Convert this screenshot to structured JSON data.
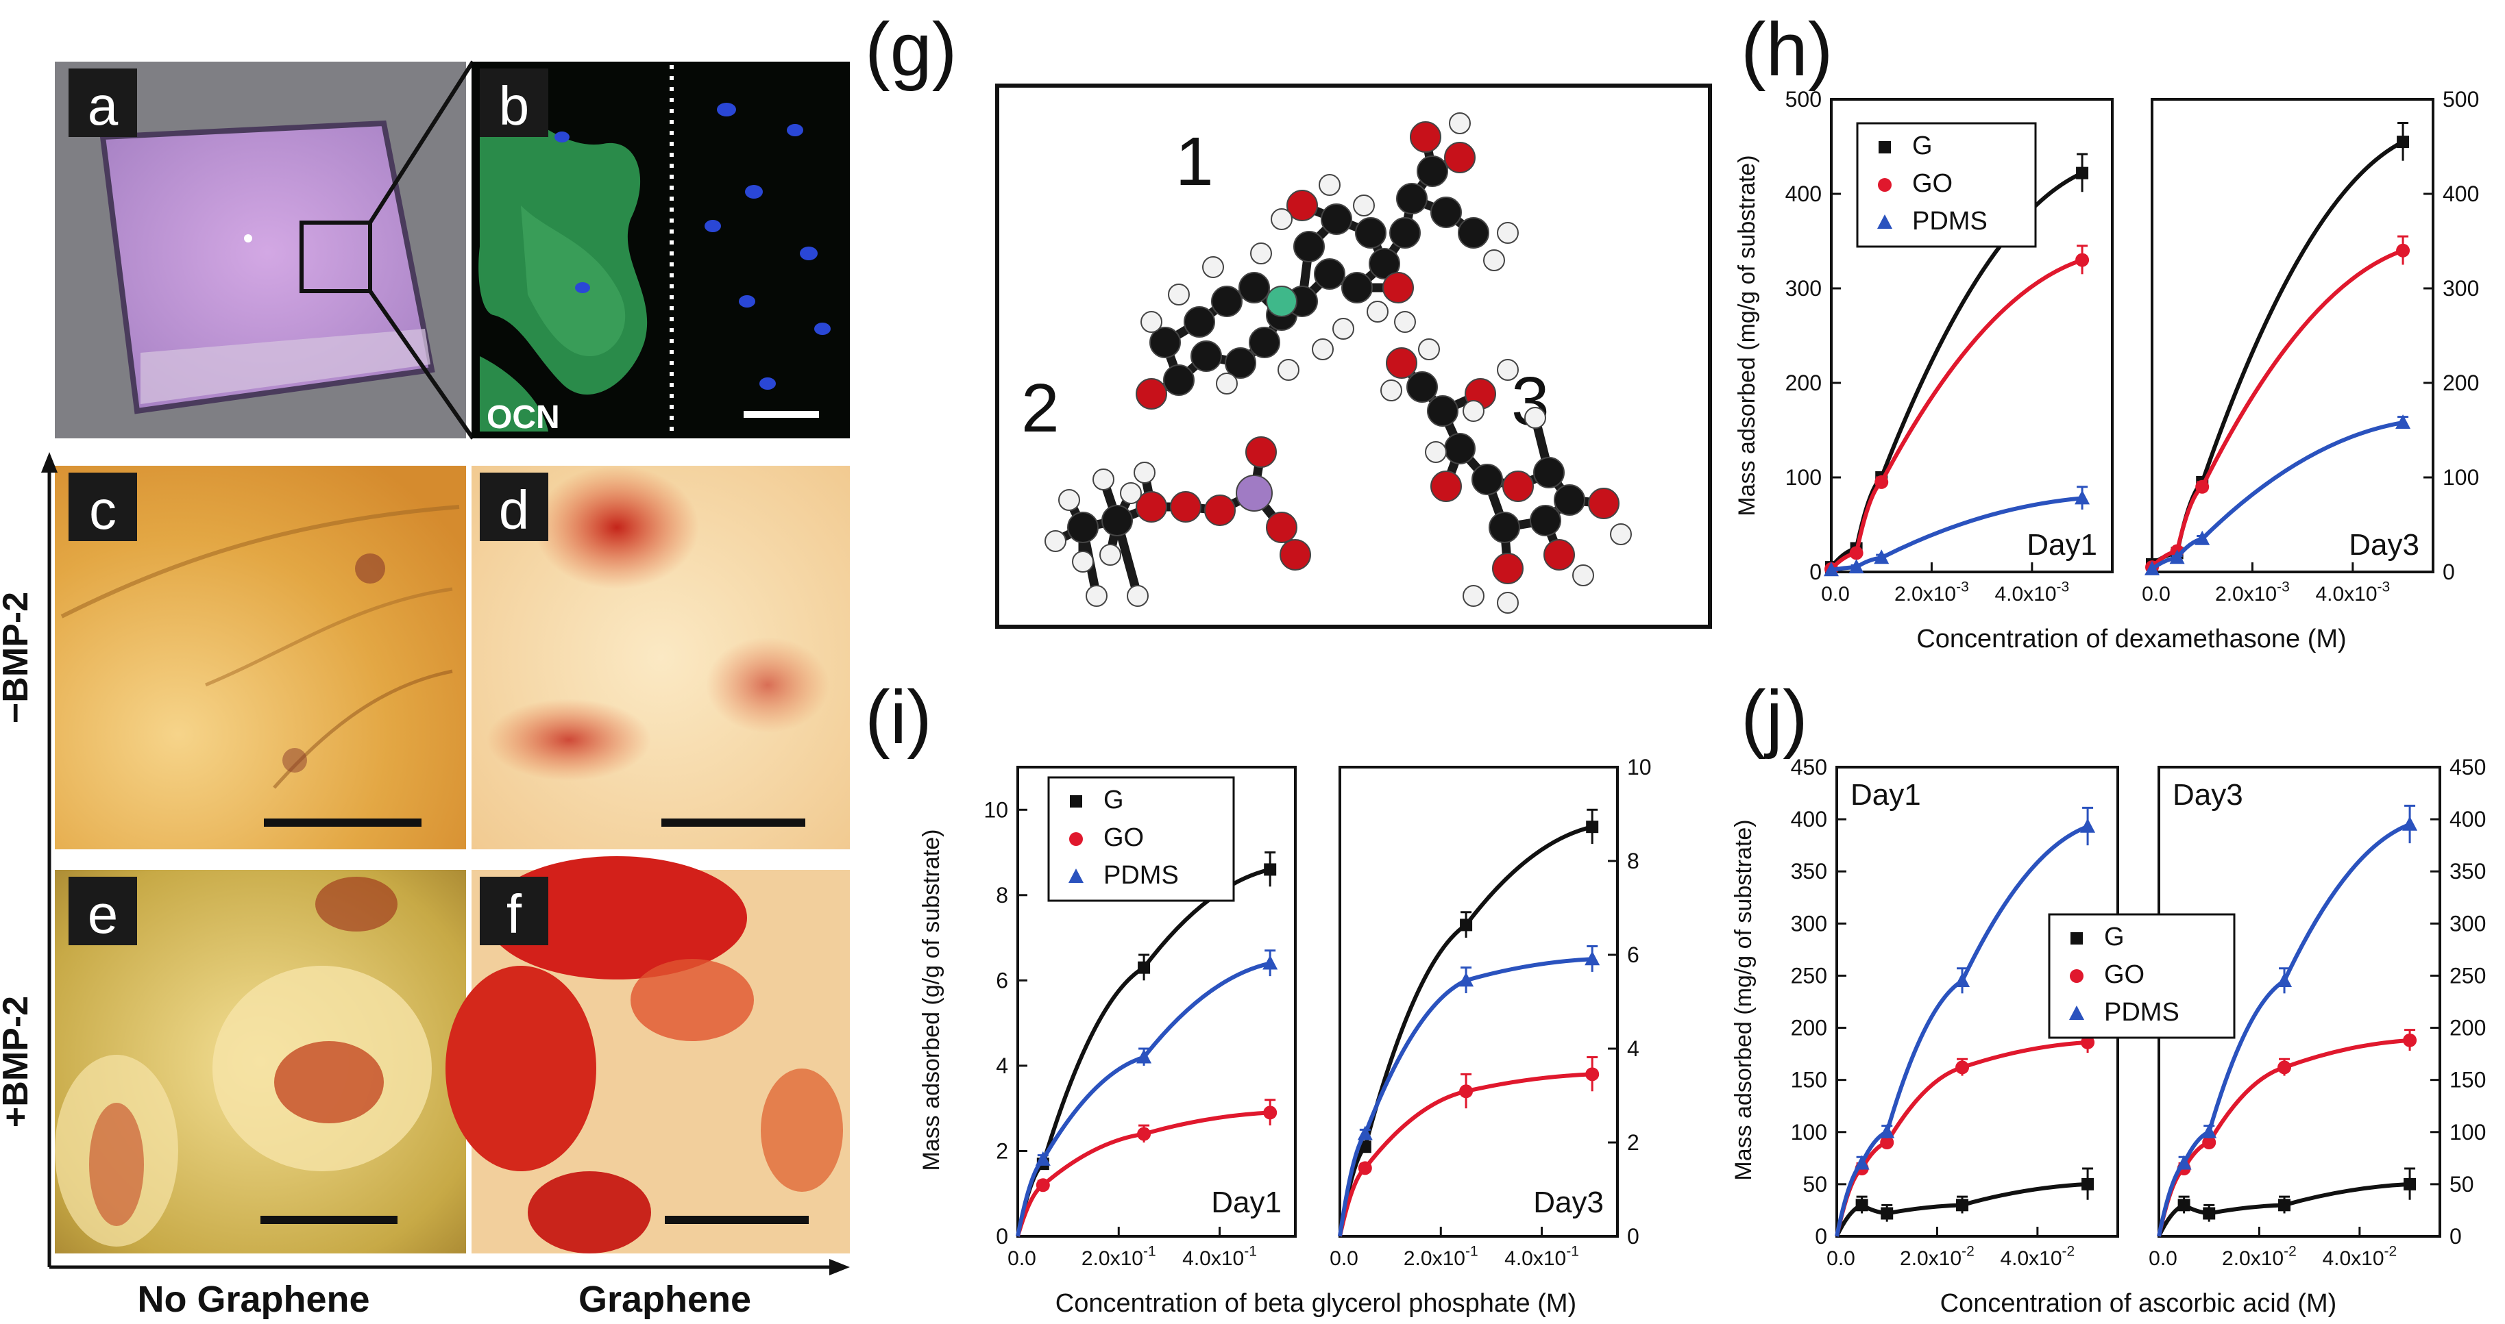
{
  "colors": {
    "G": "#111111",
    "GO": "#e0182d",
    "PDMS": "#2a52be",
    "chip": "#b88fd0",
    "fluor_green": "#2f9a52",
    "fluor_blue": "#2a47d6",
    "stain_yellow": "#e9b552",
    "stain_red": "#c92a1b"
  },
  "photos": {
    "a": {
      "label": "a"
    },
    "b": {
      "label": "b",
      "stain": "OCN"
    },
    "c": {
      "label": "c"
    },
    "d": {
      "label": "d"
    },
    "e": {
      "label": "e"
    },
    "f": {
      "label": "f"
    },
    "row_top": "−BMP-2",
    "row_bottom": "+BMP-2",
    "col_left": "No Graphene",
    "col_right": "Graphene"
  },
  "molecules": {
    "panel": "(g)",
    "labels": [
      "1",
      "2",
      "3"
    ],
    "atom_colors": {
      "C": "#151515",
      "H": "#f2f2f2",
      "O": "#c7111a",
      "P": "#a07bc4",
      "F": "#3fb88a"
    }
  },
  "chart_data": [
    {
      "panel": "(h)",
      "type": "scatter",
      "xlabel": "Concentration of dexamethasone (M)",
      "ylabel": "Mass adsorbed (mg/g of substrate)",
      "xlim": [
        0,
        0.0056
      ],
      "ylim": [
        0,
        500
      ],
      "yticks": [
        "0",
        "100",
        "200",
        "300",
        "400",
        "500"
      ],
      "xticks": [
        "0.0",
        "2.0x10^-3",
        "4.0x10^-3"
      ],
      "legend": {
        "entries": [
          "G",
          "GO",
          "PDMS"
        ],
        "position": "top-left"
      },
      "subplots": [
        {
          "label": "Day1",
          "series": [
            {
              "name": "G",
              "marker": "square",
              "x": [
                0,
                0.0005,
                0.001,
                0.005
              ],
              "y": [
                5,
                25,
                100,
                422
              ],
              "err": [
                0,
                3,
                5,
                20
              ]
            },
            {
              "name": "GO",
              "marker": "circle",
              "x": [
                0,
                0.0005,
                0.001,
                0.005
              ],
              "y": [
                3,
                20,
                95,
                330
              ],
              "err": [
                0,
                3,
                5,
                15
              ]
            },
            {
              "name": "PDMS",
              "marker": "triangle",
              "x": [
                0,
                0.0005,
                0.001,
                0.005
              ],
              "y": [
                2,
                5,
                15,
                78
              ],
              "err": [
                0,
                2,
                3,
                12
              ]
            }
          ]
        },
        {
          "label": "Day3",
          "series": [
            {
              "name": "G",
              "marker": "square",
              "x": [
                0,
                0.0005,
                0.001,
                0.005
              ],
              "y": [
                8,
                20,
                95,
                455
              ],
              "err": [
                0,
                3,
                5,
                20
              ]
            },
            {
              "name": "GO",
              "marker": "circle",
              "x": [
                0,
                0.0005,
                0.001,
                0.005
              ],
              "y": [
                5,
                22,
                90,
                340
              ],
              "err": [
                0,
                3,
                5,
                15
              ]
            },
            {
              "name": "PDMS",
              "marker": "triangle",
              "x": [
                0,
                0.0005,
                0.001,
                0.005
              ],
              "y": [
                3,
                15,
                35,
                158
              ],
              "err": [
                0,
                2,
                3,
                6
              ]
            }
          ]
        }
      ]
    },
    {
      "panel": "(i)",
      "type": "scatter",
      "xlabel": "Concentration of beta glycerol phosphate (M)",
      "ylabel": "Mass adsorbed (g/g of substrate)",
      "xlim": [
        0,
        0.55
      ],
      "ylim_left": [
        0,
        11
      ],
      "ylim_right": [
        0,
        10
      ],
      "yticks_left": [
        "0",
        "2",
        "4",
        "6",
        "8",
        "10"
      ],
      "yticks_right": [
        "0",
        "2",
        "4",
        "6",
        "8",
        "10"
      ],
      "xticks": [
        "0.0",
        "2.0x10^-1",
        "4.0x10^-1"
      ],
      "legend": {
        "entries": [
          "G",
          "GO",
          "PDMS"
        ],
        "position": "top-left"
      },
      "subplots": [
        {
          "label": "Day1",
          "series": [
            {
              "name": "G",
              "marker": "square",
              "x": [
                0.05,
                0.25,
                0.5
              ],
              "y": [
                1.7,
                6.3,
                8.6
              ],
              "err": [
                0.1,
                0.3,
                0.4
              ]
            },
            {
              "name": "GO",
              "marker": "circle",
              "x": [
                0.05,
                0.25,
                0.5
              ],
              "y": [
                1.2,
                2.4,
                2.9
              ],
              "err": [
                0.1,
                0.2,
                0.3
              ]
            },
            {
              "name": "PDMS",
              "marker": "triangle",
              "x": [
                0.05,
                0.25,
                0.5
              ],
              "y": [
                1.8,
                4.2,
                6.4
              ],
              "err": [
                0.1,
                0.2,
                0.3
              ]
            }
          ]
        },
        {
          "label": "Day3",
          "series": [
            {
              "name": "G",
              "marker": "square",
              "x": [
                0.05,
                0.25,
                0.5
              ],
              "y": [
                2.1,
                7.3,
                9.6
              ],
              "err": [
                0.1,
                0.3,
                0.4
              ]
            },
            {
              "name": "GO",
              "marker": "circle",
              "x": [
                0.05,
                0.25,
                0.5
              ],
              "y": [
                1.6,
                3.4,
                3.8
              ],
              "err": [
                0.1,
                0.4,
                0.4
              ]
            },
            {
              "name": "PDMS",
              "marker": "triangle",
              "x": [
                0.05,
                0.25,
                0.5
              ],
              "y": [
                2.4,
                6.0,
                6.5
              ],
              "err": [
                0.1,
                0.3,
                0.3
              ]
            }
          ]
        }
      ]
    },
    {
      "panel": "(j)",
      "type": "scatter",
      "xlabel": "Concentration of ascorbic acid (M)",
      "ylabel": "Mass adsorbed (mg/g of substrate)",
      "xlim": [
        0,
        0.056
      ],
      "ylim": [
        0,
        450
      ],
      "yticks": [
        "0",
        "50",
        "100",
        "150",
        "200",
        "250",
        "300",
        "350",
        "400",
        "450"
      ],
      "xticks": [
        "0.0",
        "2.0x10^-2",
        "4.0x10^-2"
      ],
      "legend": {
        "entries": [
          "G",
          "GO",
          "PDMS"
        ],
        "position": "center"
      },
      "subplots": [
        {
          "label": "Day1",
          "series": [
            {
              "name": "G",
              "marker": "square",
              "x": [
                0.005,
                0.01,
                0.025,
                0.05
              ],
              "y": [
                30,
                22,
                30,
                50
              ],
              "err": [
                8,
                8,
                8,
                15
              ]
            },
            {
              "name": "GO",
              "marker": "circle",
              "x": [
                0.005,
                0.01,
                0.025,
                0.05
              ],
              "y": [
                65,
                90,
                162,
                186
              ],
              "err": [
                5,
                6,
                8,
                10
              ]
            },
            {
              "name": "PDMS",
              "marker": "triangle",
              "x": [
                0.005,
                0.01,
                0.025,
                0.05
              ],
              "y": [
                70,
                100,
                245,
                393
              ],
              "err": [
                6,
                6,
                12,
                18
              ]
            }
          ]
        },
        {
          "label": "Day3",
          "series": [
            {
              "name": "G",
              "marker": "square",
              "x": [
                0.005,
                0.01,
                0.025,
                0.05
              ],
              "y": [
                30,
                22,
                30,
                50
              ],
              "err": [
                8,
                8,
                8,
                15
              ]
            },
            {
              "name": "GO",
              "marker": "circle",
              "x": [
                0.005,
                0.01,
                0.025,
                0.05
              ],
              "y": [
                65,
                90,
                162,
                188
              ],
              "err": [
                5,
                6,
                8,
                10
              ]
            },
            {
              "name": "PDMS",
              "marker": "triangle",
              "x": [
                0.005,
                0.01,
                0.025,
                0.05
              ],
              "y": [
                70,
                100,
                245,
                395
              ],
              "err": [
                6,
                6,
                12,
                18
              ]
            }
          ]
        }
      ]
    }
  ]
}
